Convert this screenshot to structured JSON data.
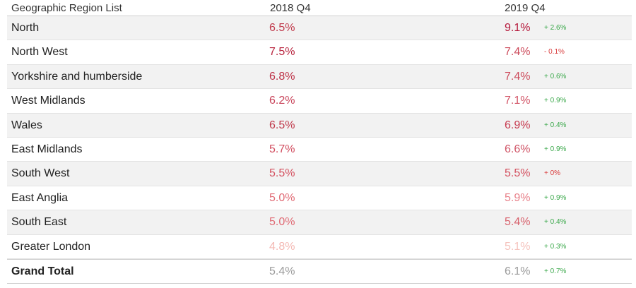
{
  "chart_data": {
    "type": "table",
    "columns": {
      "region": "Geographic Region List",
      "y2018": "2018 Q4",
      "y2019": "2019 Q4"
    },
    "rows": [
      {
        "region": "North",
        "y2018": "6.5%",
        "y2019": "9.1%",
        "change": "+ 2.6%",
        "c2018": "#c0394b",
        "c2019": "#b5173a",
        "cchg": "#3aa84a"
      },
      {
        "region": "North West",
        "y2018": "7.5%",
        "y2019": "7.4%",
        "change": "- 0.1%",
        "c2018": "#b8243e",
        "c2019": "#cd4c5c",
        "cchg": "#d93a3a"
      },
      {
        "region": "Yorkshire and humberside",
        "y2018": "6.8%",
        "y2019": "7.4%",
        "change": "+ 0.6%",
        "c2018": "#bd3146",
        "c2019": "#cd4c5c",
        "cchg": "#3aa84a"
      },
      {
        "region": "West Midlands",
        "y2018": "6.2%",
        "y2019": "7.1%",
        "change": "+ 0.9%",
        "c2018": "#c8445a",
        "c2019": "#d25466",
        "cchg": "#3aa84a"
      },
      {
        "region": "Wales",
        "y2018": "6.5%",
        "y2019": "6.9%",
        "change": "+ 0.4%",
        "c2018": "#c0394b",
        "c2019": "#c73a4f",
        "cchg": "#3aa84a"
      },
      {
        "region": "East Midlands",
        "y2018": "5.7%",
        "y2019": "6.6%",
        "change": "+ 0.9%",
        "c2018": "#d14c5e",
        "c2019": "#d05567",
        "cchg": "#3aa84a"
      },
      {
        "region": "South West",
        "y2018": "5.5%",
        "y2019": "5.5%",
        "change": "+ 0%",
        "c2018": "#d4505f",
        "c2019": "#d4505f",
        "cchg": "#d93a3a"
      },
      {
        "region": "East Anglia",
        "y2018": "5.0%",
        "y2019": "5.9%",
        "change": "+ 0.9%",
        "c2018": "#e06a74",
        "c2019": "#e88089",
        "cchg": "#3aa84a"
      },
      {
        "region": "South East",
        "y2018": "5.0%",
        "y2019": "5.4%",
        "change": "+ 0.4%",
        "c2018": "#e06a74",
        "c2019": "#d8626d",
        "cchg": "#3aa84a"
      },
      {
        "region": "Greater London",
        "y2018": "4.8%",
        "y2019": "5.1%",
        "change": "+ 0.3%",
        "c2018": "#f4b8b3",
        "c2019": "#f5c3bd",
        "cchg": "#3aa84a"
      }
    ],
    "total": {
      "region": "Grand Total",
      "y2018": "5.4%",
      "y2019": "6.1%",
      "change": "+ 0.7%",
      "c2018": "#9a9a9a",
      "c2019": "#9a9a9a",
      "cchg": "#3aa84a"
    }
  }
}
